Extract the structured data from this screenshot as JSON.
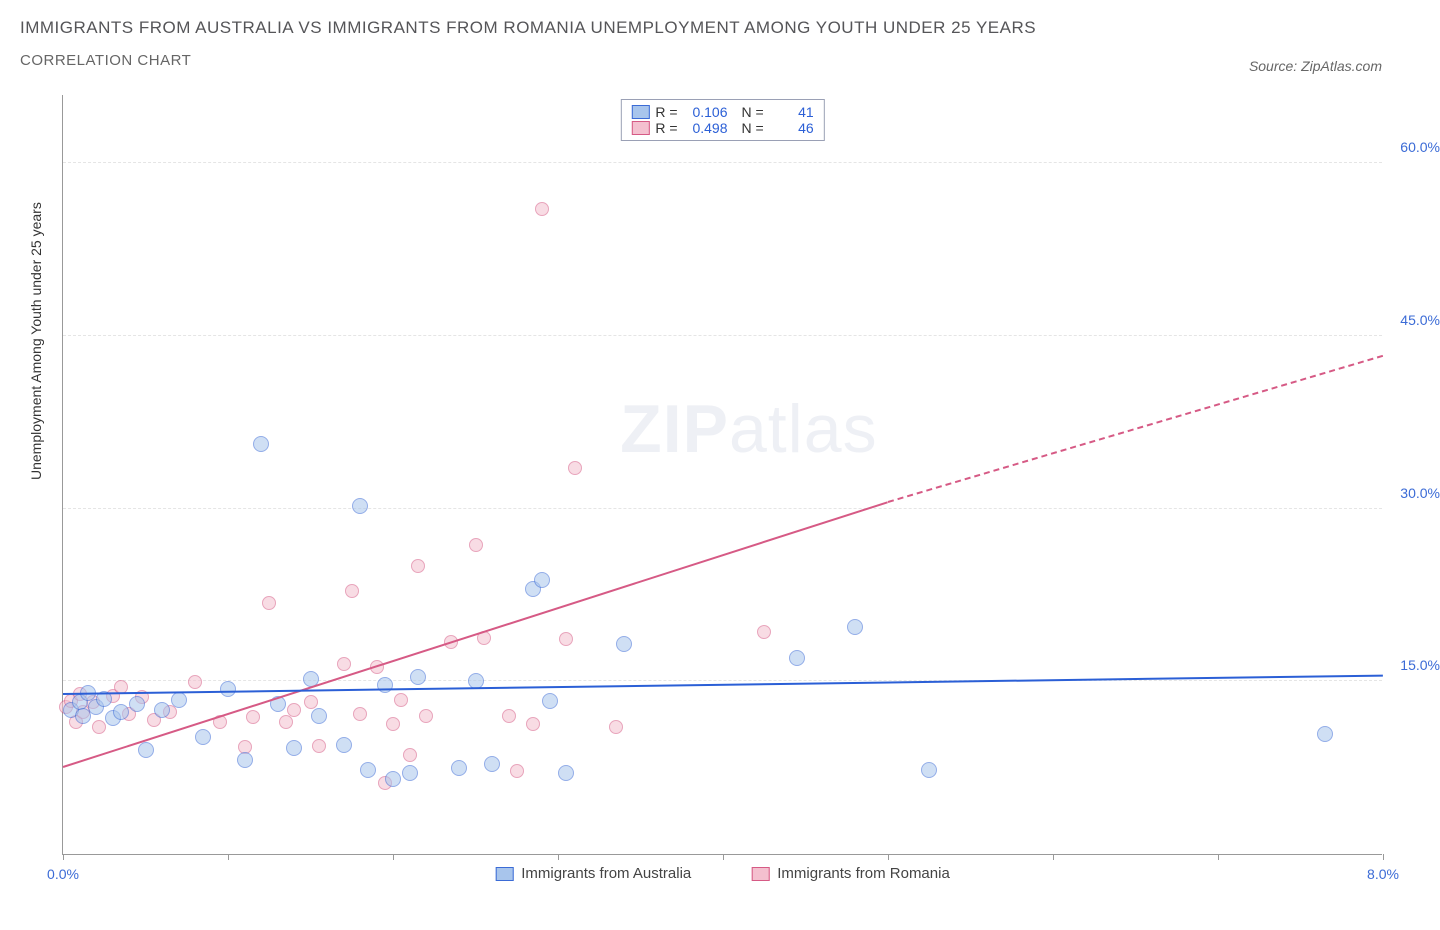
{
  "title_line1": "IMMIGRANTS FROM AUSTRALIA VS IMMIGRANTS FROM ROMANIA UNEMPLOYMENT AMONG YOUTH UNDER 25 YEARS",
  "title_line2": "CORRELATION CHART",
  "source_label": "Source: ZipAtlas.com",
  "ylabel": "Unemployment Among Youth under 25 years",
  "watermark_bold": "ZIP",
  "watermark_light": "atlas",
  "chart": {
    "type": "scatter",
    "xlim": [
      0,
      8
    ],
    "ylim": [
      0,
      66
    ],
    "xtick_positions": [
      0,
      1,
      2,
      3,
      4,
      5,
      6,
      7,
      8
    ],
    "xtick_labels": {
      "0": "0.0%",
      "8": "8.0%"
    },
    "ytick_positions": [
      15,
      30,
      45,
      60
    ],
    "ytick_labels": [
      "15.0%",
      "30.0%",
      "45.0%",
      "60.0%"
    ],
    "grid_color": "#e5e5e5",
    "axis_color": "#999999",
    "background_color": "#ffffff",
    "label_color": "#3b6bd6",
    "point_radius": 8,
    "point_radius_small": 7,
    "point_opacity": 0.55,
    "series": {
      "australia": {
        "label": "Immigrants from Australia",
        "fill": "#a8c5ec",
        "stroke": "#3b6bd6",
        "line_color": "#2b5fd6",
        "R": "0.106",
        "N": "41",
        "trend": {
          "x1": 0.0,
          "y1": 13.8,
          "x2": 8.0,
          "y2": 15.4
        },
        "points": [
          [
            0.05,
            12.5
          ],
          [
            0.1,
            13.2
          ],
          [
            0.12,
            12.0
          ],
          [
            0.15,
            14.0
          ],
          [
            0.2,
            12.8
          ],
          [
            0.25,
            13.5
          ],
          [
            0.3,
            11.8
          ],
          [
            0.35,
            12.3
          ],
          [
            0.45,
            13.0
          ],
          [
            0.5,
            9.0
          ],
          [
            0.6,
            12.5
          ],
          [
            0.7,
            13.4
          ],
          [
            0.85,
            10.2
          ],
          [
            1.0,
            14.3
          ],
          [
            1.1,
            8.2
          ],
          [
            1.2,
            35.6
          ],
          [
            1.3,
            13.0
          ],
          [
            1.4,
            9.2
          ],
          [
            1.5,
            15.2
          ],
          [
            1.55,
            12.0
          ],
          [
            1.7,
            9.5
          ],
          [
            1.8,
            30.2
          ],
          [
            1.85,
            7.3
          ],
          [
            1.95,
            14.7
          ],
          [
            2.0,
            6.5
          ],
          [
            2.1,
            7.0
          ],
          [
            2.15,
            15.4
          ],
          [
            2.4,
            7.5
          ],
          [
            2.5,
            15.0
          ],
          [
            2.6,
            7.8
          ],
          [
            2.85,
            23.0
          ],
          [
            2.9,
            23.8
          ],
          [
            2.95,
            13.3
          ],
          [
            3.05,
            7.0
          ],
          [
            3.4,
            18.2
          ],
          [
            4.45,
            17.0
          ],
          [
            4.8,
            19.7
          ],
          [
            5.25,
            7.3
          ],
          [
            7.65,
            10.4
          ]
        ]
      },
      "romania": {
        "label": "Immigrants from Romania",
        "fill": "#f4c0cf",
        "stroke": "#d65a85",
        "line_color": "#d65a85",
        "R": "0.498",
        "N": "46",
        "trend_solid": {
          "x1": 0.0,
          "y1": 7.5,
          "x2": 5.0,
          "y2": 30.5
        },
        "trend_dash": {
          "x1": 5.0,
          "y1": 30.5,
          "x2": 8.0,
          "y2": 43.2
        },
        "points": [
          [
            0.02,
            12.8
          ],
          [
            0.05,
            13.3
          ],
          [
            0.08,
            11.5
          ],
          [
            0.1,
            13.9
          ],
          [
            0.12,
            12.3
          ],
          [
            0.18,
            13.2
          ],
          [
            0.22,
            11.0
          ],
          [
            0.3,
            13.7
          ],
          [
            0.35,
            14.5
          ],
          [
            0.4,
            12.2
          ],
          [
            0.48,
            13.6
          ],
          [
            0.55,
            11.6
          ],
          [
            0.65,
            12.3
          ],
          [
            0.8,
            14.9
          ],
          [
            0.95,
            11.5
          ],
          [
            1.1,
            9.3
          ],
          [
            1.15,
            11.9
          ],
          [
            1.25,
            21.8
          ],
          [
            1.35,
            11.5
          ],
          [
            1.4,
            12.5
          ],
          [
            1.5,
            13.2
          ],
          [
            1.55,
            9.4
          ],
          [
            1.7,
            16.5
          ],
          [
            1.75,
            22.8
          ],
          [
            1.8,
            12.2
          ],
          [
            1.9,
            16.2
          ],
          [
            1.95,
            6.2
          ],
          [
            2.0,
            11.3
          ],
          [
            2.05,
            13.4
          ],
          [
            2.1,
            8.6
          ],
          [
            2.15,
            25.0
          ],
          [
            2.2,
            12.0
          ],
          [
            2.35,
            18.4
          ],
          [
            2.5,
            26.8
          ],
          [
            2.55,
            18.8
          ],
          [
            2.7,
            12.0
          ],
          [
            2.75,
            7.2
          ],
          [
            2.85,
            11.3
          ],
          [
            2.9,
            56.0
          ],
          [
            3.05,
            18.7
          ],
          [
            3.1,
            33.5
          ],
          [
            3.35,
            11.0
          ],
          [
            4.25,
            19.3
          ]
        ]
      }
    }
  },
  "stats_box": {
    "rows": [
      {
        "series": "australia",
        "R_label": "R =",
        "N_label": "N ="
      },
      {
        "series": "romania",
        "R_label": "R =",
        "N_label": "N ="
      }
    ]
  }
}
